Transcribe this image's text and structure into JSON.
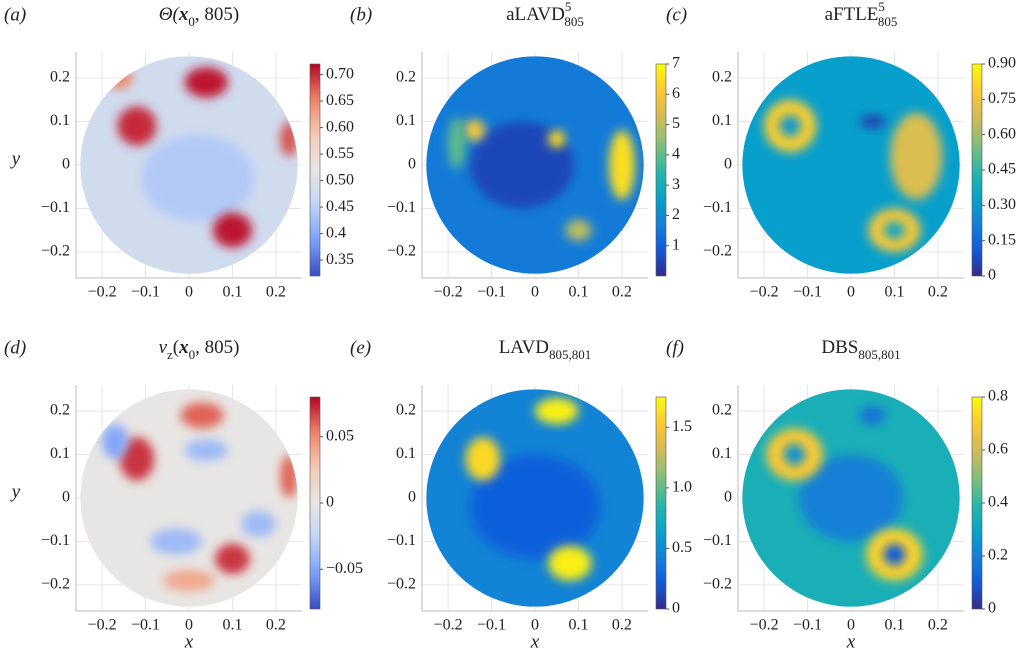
{
  "chart_data": [
    {
      "type": "field",
      "label": "(a)",
      "title": [
        {
          "text": "Θ("
        },
        {
          "bold": "x"
        },
        {
          "sub": "0"
        },
        {
          "text": ", 805)"
        }
      ],
      "ylabel": "y",
      "colormap": "coolwarm",
      "xlim": [
        -0.26,
        0.26
      ],
      "ylim": [
        -0.26,
        0.26
      ],
      "xticks": [
        {
          "value": -0.2,
          "label": "−0.2"
        },
        {
          "value": -0.1,
          "label": "−0.1"
        },
        0,
        0.1,
        0.2
      ],
      "yticks": [
        {
          "value": -0.2,
          "label": "−0.2"
        },
        {
          "value": -0.1,
          "label": "−0.1"
        },
        0,
        0.1,
        0.2
      ],
      "clim": [
        0.32,
        0.72
      ],
      "cticks": [
        0.35,
        0.4,
        0.45,
        {
          "value": 0.5,
          "label": "0.50"
        },
        0.55,
        {
          "value": 0.6,
          "label": "0.60"
        },
        0.65,
        {
          "value": 0.7,
          "label": "0.70"
        }
      ],
      "background": 0.48,
      "blobs": [
        {
          "x": 0.02,
          "y": -0.03,
          "rx": 0.13,
          "ry": 0.1,
          "value": 0.44
        },
        {
          "x": -0.12,
          "y": 0.09,
          "rx": 0.045,
          "ry": 0.045,
          "value": 0.7
        },
        {
          "x": 0.04,
          "y": 0.19,
          "rx": 0.05,
          "ry": 0.035,
          "value": 0.71
        },
        {
          "x": 0.1,
          "y": -0.15,
          "rx": 0.045,
          "ry": 0.04,
          "value": 0.71
        },
        {
          "x": -0.16,
          "y": 0.2,
          "rx": 0.03,
          "ry": 0.025,
          "value": 0.65
        },
        {
          "x": 0.23,
          "y": 0.06,
          "rx": 0.02,
          "ry": 0.04,
          "value": 0.68
        }
      ]
    },
    {
      "type": "field",
      "label": "(b)",
      "title": [
        {
          "text": "aLAVD"
        },
        {
          "sup": "5"
        },
        {
          "sub": "805"
        }
      ],
      "colormap": "parula",
      "xlim": [
        -0.26,
        0.26
      ],
      "ylim": [
        -0.26,
        0.26
      ],
      "xticks": [
        {
          "value": -0.2,
          "label": "−0.2"
        },
        {
          "value": -0.1,
          "label": "−0.1"
        },
        0,
        0.1,
        0.2
      ],
      "yticks": [
        {
          "value": -0.2,
          "label": "−0.2"
        },
        {
          "value": -0.1,
          "label": "−0.1"
        },
        0,
        0.1,
        0.2
      ],
      "clim": [
        0,
        7
      ],
      "cticks": [
        1,
        2,
        3,
        4,
        5,
        6,
        7
      ],
      "background": 1.6,
      "blobs": [
        {
          "x": -0.03,
          "y": 0.0,
          "rx": 0.12,
          "ry": 0.1,
          "value": 0.5
        },
        {
          "x": -0.14,
          "y": 0.08,
          "rx": 0.025,
          "ry": 0.025,
          "value": 6
        },
        {
          "x": 0.05,
          "y": 0.06,
          "rx": 0.02,
          "ry": 0.02,
          "value": 6.5
        },
        {
          "x": 0.2,
          "y": 0.0,
          "rx": 0.03,
          "ry": 0.08,
          "value": 6.5
        },
        {
          "x": 0.1,
          "y": -0.15,
          "rx": 0.03,
          "ry": 0.025,
          "value": 5
        },
        {
          "x": -0.18,
          "y": 0.05,
          "rx": 0.02,
          "ry": 0.06,
          "value": 4
        }
      ]
    },
    {
      "type": "field",
      "label": "(c)",
      "title": [
        {
          "text": "aFTLE"
        },
        {
          "sup": "5"
        },
        {
          "sub": "805"
        }
      ],
      "colormap": "parula",
      "xlim": [
        -0.26,
        0.26
      ],
      "ylim": [
        -0.26,
        0.26
      ],
      "xticks": [
        {
          "value": -0.2,
          "label": "−0.2"
        },
        {
          "value": -0.1,
          "label": "−0.1"
        },
        0,
        0.1,
        0.2
      ],
      "yticks": [
        {
          "value": -0.2,
          "label": "−0.2"
        },
        {
          "value": -0.1,
          "label": "−0.1"
        },
        0,
        0.1,
        0.2
      ],
      "clim": [
        0,
        0.9
      ],
      "cticks": [
        0,
        0.15,
        {
          "value": 0.3,
          "label": "0.30"
        },
        0.45,
        {
          "value": 0.6,
          "label": "0.60"
        },
        0.75,
        {
          "value": 0.9,
          "label": "0.90"
        }
      ],
      "background": 0.32,
      "blobs": [
        {
          "x": -0.14,
          "y": 0.09,
          "rx": 0.06,
          "ry": 0.06,
          "value": 0.8
        },
        {
          "x": -0.14,
          "y": 0.09,
          "rx": 0.025,
          "ry": 0.025,
          "value": 0.3
        },
        {
          "x": 0.1,
          "y": -0.15,
          "rx": 0.06,
          "ry": 0.05,
          "value": 0.78
        },
        {
          "x": 0.1,
          "y": -0.15,
          "rx": 0.025,
          "ry": 0.02,
          "value": 0.35
        },
        {
          "x": 0.05,
          "y": 0.1,
          "rx": 0.03,
          "ry": 0.015,
          "value": 0.05
        },
        {
          "x": 0.15,
          "y": 0.02,
          "rx": 0.06,
          "ry": 0.1,
          "value": 0.7
        }
      ]
    },
    {
      "type": "field",
      "label": "(d)",
      "title": [
        {
          "text": "v"
        },
        {
          "sub": "z"
        },
        {
          "text": "("
        },
        {
          "bold": "x"
        },
        {
          "sub": "0"
        },
        {
          "text": ", 805)"
        }
      ],
      "xlabel": "x",
      "ylabel": "y",
      "colormap": "coolwarm",
      "xlim": [
        -0.26,
        0.26
      ],
      "ylim": [
        -0.26,
        0.26
      ],
      "xticks": [
        {
          "value": -0.2,
          "label": "−0.2"
        },
        {
          "value": -0.1,
          "label": "−0.1"
        },
        0,
        0.1,
        0.2
      ],
      "yticks": [
        {
          "value": -0.2,
          "label": "−0.2"
        },
        {
          "value": -0.1,
          "label": "−0.1"
        },
        0,
        0.1,
        0.2
      ],
      "clim": [
        -0.08,
        0.08
      ],
      "cticks": [
        {
          "value": -0.05,
          "label": "−0.05"
        },
        0,
        0.05
      ],
      "background": 0,
      "blobs": [
        {
          "x": -0.12,
          "y": 0.09,
          "rx": 0.04,
          "ry": 0.05,
          "value": 0.07
        },
        {
          "x": 0.03,
          "y": 0.19,
          "rx": 0.05,
          "ry": 0.03,
          "value": 0.06
        },
        {
          "x": 0.1,
          "y": -0.14,
          "rx": 0.04,
          "ry": 0.035,
          "value": 0.07
        },
        {
          "x": 0.0,
          "y": -0.19,
          "rx": 0.06,
          "ry": 0.025,
          "value": 0.04
        },
        {
          "x": -0.17,
          "y": 0.13,
          "rx": 0.03,
          "ry": 0.04,
          "value": -0.05
        },
        {
          "x": 0.04,
          "y": 0.11,
          "rx": 0.05,
          "ry": 0.025,
          "value": -0.04
        },
        {
          "x": -0.03,
          "y": -0.1,
          "rx": 0.06,
          "ry": 0.03,
          "value": -0.04
        },
        {
          "x": 0.16,
          "y": -0.06,
          "rx": 0.04,
          "ry": 0.03,
          "value": -0.04
        },
        {
          "x": 0.23,
          "y": 0.05,
          "rx": 0.02,
          "ry": 0.05,
          "value": 0.06
        }
      ]
    },
    {
      "type": "field",
      "label": "(e)",
      "title": [
        {
          "text": "LAVD"
        },
        {
          "sub": "805,801"
        }
      ],
      "xlabel": "x",
      "colormap": "parula",
      "xlim": [
        -0.26,
        0.26
      ],
      "ylim": [
        -0.26,
        0.26
      ],
      "xticks": [
        {
          "value": -0.2,
          "label": "−0.2"
        },
        {
          "value": -0.1,
          "label": "−0.1"
        },
        0,
        0.1,
        0.2
      ],
      "yticks": [
        {
          "value": -0.2,
          "label": "−0.2"
        },
        {
          "value": -0.1,
          "label": "−0.1"
        },
        0,
        0.1,
        0.2
      ],
      "clim": [
        0,
        1.75
      ],
      "cticks": [
        0,
        0.5,
        {
          "value": 1,
          "label": "1.0"
        },
        1.5
      ],
      "background": 0.45,
      "blobs": [
        {
          "x": 0.0,
          "y": -0.02,
          "rx": 0.15,
          "ry": 0.12,
          "value": 0.25
        },
        {
          "x": -0.12,
          "y": 0.09,
          "rx": 0.04,
          "ry": 0.05,
          "value": 1.6
        },
        {
          "x": 0.05,
          "y": 0.2,
          "rx": 0.05,
          "ry": 0.03,
          "value": 1.7
        },
        {
          "x": 0.08,
          "y": -0.15,
          "rx": 0.05,
          "ry": 0.04,
          "value": 1.7
        }
      ]
    },
    {
      "type": "field",
      "label": "(f)",
      "title": [
        {
          "text": "DBS"
        },
        {
          "sub": "805,801"
        }
      ],
      "xlabel": "x",
      "colormap": "parula",
      "xlim": [
        -0.26,
        0.26
      ],
      "ylim": [
        -0.26,
        0.26
      ],
      "xticks": [
        {
          "value": -0.2,
          "label": "−0.2"
        },
        {
          "value": -0.1,
          "label": "−0.1"
        },
        0,
        0.1,
        0.2
      ],
      "yticks": [
        {
          "value": -0.2,
          "label": "−0.2"
        },
        {
          "value": -0.1,
          "label": "−0.1"
        },
        0,
        0.1,
        0.2
      ],
      "clim": [
        0,
        0.8
      ],
      "cticks": [
        0,
        0.2,
        0.4,
        0.6,
        0.8
      ],
      "background": 0.35,
      "blobs": [
        {
          "x": 0.0,
          "y": 0.0,
          "rx": 0.12,
          "ry": 0.1,
          "value": 0.2
        },
        {
          "x": -0.13,
          "y": 0.1,
          "rx": 0.065,
          "ry": 0.06,
          "value": 0.7
        },
        {
          "x": -0.13,
          "y": 0.1,
          "rx": 0.025,
          "ry": 0.025,
          "value": 0.25
        },
        {
          "x": 0.1,
          "y": -0.13,
          "rx": 0.065,
          "ry": 0.06,
          "value": 0.72
        },
        {
          "x": 0.1,
          "y": -0.13,
          "rx": 0.025,
          "ry": 0.025,
          "value": 0.1
        },
        {
          "x": 0.05,
          "y": 0.19,
          "rx": 0.03,
          "ry": 0.02,
          "value": 0.15
        }
      ]
    }
  ]
}
